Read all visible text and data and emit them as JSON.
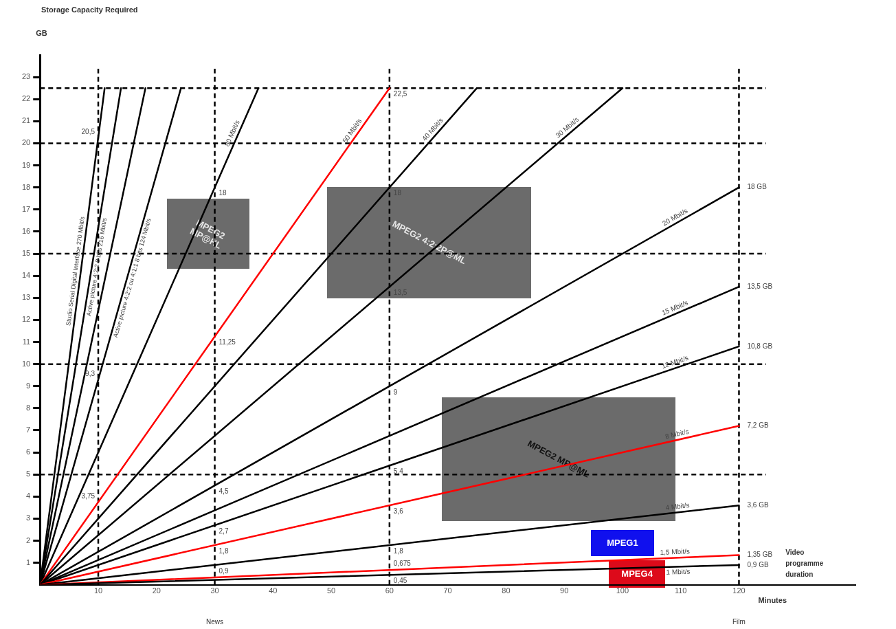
{
  "chart_data": {
    "type": "line",
    "title": "Storage Capacity Required",
    "ylabel": "GB",
    "xlabel": "Minutes",
    "xlim": [
      0,
      140
    ],
    "ylim": [
      0,
      24
    ],
    "xticks": [
      10,
      20,
      30,
      40,
      50,
      60,
      70,
      80,
      90,
      100,
      110,
      120
    ],
    "yticks": [
      1,
      2,
      3,
      4,
      5,
      6,
      7,
      8,
      9,
      10,
      11,
      12,
      13,
      14,
      15,
      16,
      17,
      18,
      19,
      20,
      21,
      22,
      23
    ],
    "grid": false,
    "legend": false,
    "marker": "none",
    "series": [
      {
        "name": "1 Mbit/s",
        "color": "#000000",
        "x": [
          0,
          120
        ],
        "values": [
          0,
          0.9
        ]
      },
      {
        "name": "1,5 Mbit/s",
        "color": "#ff0000",
        "x": [
          0,
          120
        ],
        "values": [
          0,
          1.35
        ]
      },
      {
        "name": "4 Mbit/s",
        "color": "#000000",
        "x": [
          0,
          120
        ],
        "values": [
          0,
          3.6
        ]
      },
      {
        "name": "8 Mbit/s",
        "color": "#ff0000",
        "x": [
          0,
          120
        ],
        "values": [
          0,
          7.2
        ]
      },
      {
        "name": "12 Mbit/s",
        "color": "#000000",
        "x": [
          0,
          120
        ],
        "values": [
          0,
          10.8
        ]
      },
      {
        "name": "15 Mbit/s",
        "color": "#000000",
        "x": [
          0,
          120
        ],
        "values": [
          0,
          13.5
        ]
      },
      {
        "name": "20 Mbit/s",
        "color": "#000000",
        "x": [
          0,
          120
        ],
        "values": [
          0,
          18
        ]
      },
      {
        "name": "30 Mbit/s",
        "color": "#000000",
        "x": [
          0,
          100
        ],
        "values": [
          0,
          22.5
        ]
      },
      {
        "name": "40 Mbit/s",
        "color": "#000000",
        "x": [
          0,
          75
        ],
        "values": [
          0,
          22.5
        ]
      },
      {
        "name": "50 Mbit/s",
        "color": "#ff0000",
        "x": [
          0,
          60
        ],
        "values": [
          0,
          22.5
        ]
      },
      {
        "name": "80 Mbit/s",
        "color": "#000000",
        "x": [
          0,
          37.5
        ],
        "values": [
          0,
          22.5
        ]
      },
      {
        "name": "Active picture 4:2:2 ou 4:1:1 8 bits 124 Mbit/s",
        "color": "#000000",
        "x": [
          0,
          24.2
        ],
        "values": [
          0,
          22.5
        ]
      },
      {
        "color": "#000000",
        "x": [
          0,
          18.1
        ],
        "values": [
          0,
          22.5
        ]
      },
      {
        "name": "Active picture 4:2:2 8 bits 216 Mbit/s",
        "color": "#000000",
        "x": [
          0,
          13.9
        ],
        "values": [
          0,
          22.5
        ]
      },
      {
        "name": "Studio Serial Digital Interface 270 Mbit/s",
        "color": "#000000",
        "x": [
          0,
          11.1
        ],
        "values": [
          0,
          22.5
        ]
      }
    ],
    "ref_lines": [
      {
        "axis": "y",
        "value": 5,
        "line_style": "dashed"
      },
      {
        "axis": "y",
        "value": 10,
        "line_style": "dashed"
      },
      {
        "axis": "y",
        "value": 15,
        "line_style": "dashed"
      },
      {
        "axis": "y",
        "value": 20,
        "line_style": "dashed"
      },
      {
        "axis": "y",
        "value": 22.5,
        "line_style": "dashed"
      },
      {
        "axis": "x",
        "value": 10,
        "line_style": "dashed"
      },
      {
        "axis": "x",
        "value": 30,
        "line_style": "dashed"
      },
      {
        "axis": "x",
        "value": 60,
        "line_style": "dashed"
      },
      {
        "axis": "x",
        "value": 120,
        "line_style": "dashed"
      }
    ],
    "annotations": [
      "MPEG2 MP@HL",
      "MPEG2 4:2:2P@ML",
      "MPEG2 MP@ML",
      "MPEG1",
      "MPEG4",
      {
        "text": "20,5",
        "x": 10,
        "y": 20.25
      },
      {
        "text": "9,3",
        "x": 10,
        "y": 9.3
      },
      {
        "text": "3,75",
        "x": 10,
        "y": 3.75
      },
      {
        "text": "18",
        "x": 30,
        "y": 18
      },
      {
        "text": "11,25",
        "x": 30,
        "y": 11.25
      },
      {
        "text": "4,5",
        "x": 30,
        "y": 4.5
      },
      {
        "text": "2,7",
        "x": 30,
        "y": 2.7
      },
      {
        "text": "1,8",
        "x": 30,
        "y": 1.8
      },
      {
        "text": "0,9",
        "x": 30,
        "y": 0.9
      },
      {
        "text": "22,5",
        "x": 60,
        "y": 22.5
      },
      {
        "text": "18",
        "x": 60,
        "y": 18
      },
      {
        "text": "13,5",
        "x": 60,
        "y": 13.5
      },
      {
        "text": "9",
        "x": 60,
        "y": 9
      },
      {
        "text": "5,4",
        "x": 60,
        "y": 5.4
      },
      {
        "text": "3,6",
        "x": 60,
        "y": 3.6
      },
      {
        "text": "1,8",
        "x": 60,
        "y": 1.8
      },
      {
        "text": "0,675",
        "x": 60,
        "y": 0.675
      },
      {
        "text": "0,45",
        "x": 60,
        "y": 0.45
      },
      {
        "text": "18 GB",
        "x": 120,
        "y": 18
      },
      {
        "text": "13,5 GB",
        "x": 120,
        "y": 13.5
      },
      {
        "text": "10,8 GB",
        "x": 120,
        "y": 10.8
      },
      {
        "text": "7,2 GB",
        "x": 120,
        "y": 7.2
      },
      {
        "text": "3,6 GB",
        "x": 120,
        "y": 3.6
      },
      {
        "text": "1,35 GB",
        "x": 120,
        "y": 1.35
      },
      {
        "text": "0,9 GB",
        "x": 120,
        "y": 0.9
      },
      "Video programme duration",
      "News",
      "Film"
    ]
  }
}
